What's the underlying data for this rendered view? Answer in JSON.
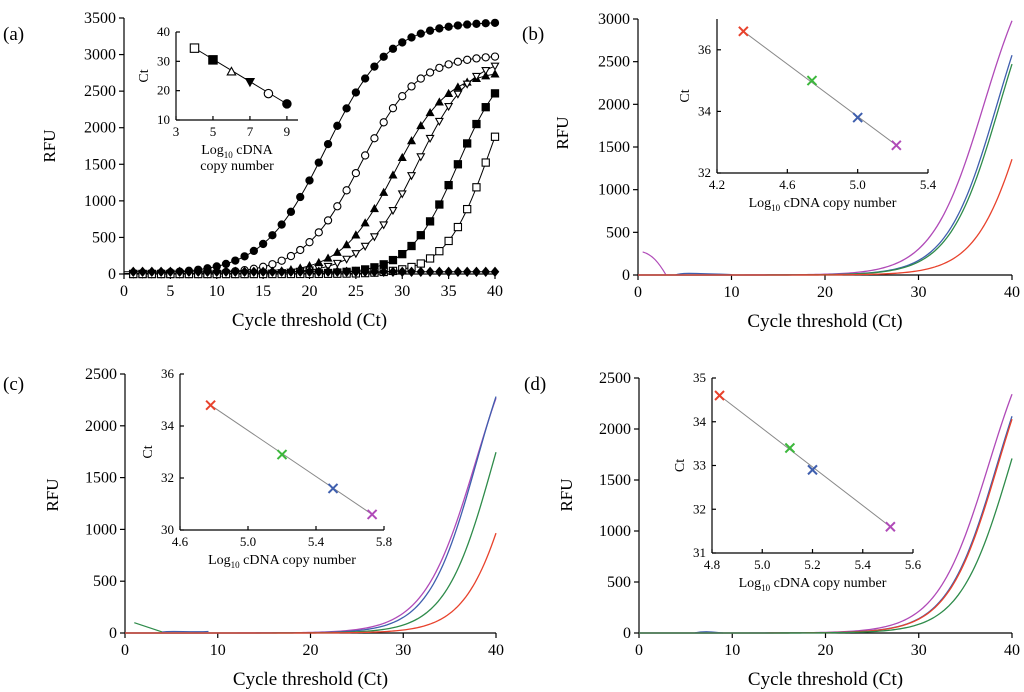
{
  "chart_data": [
    {
      "type": "line",
      "panel_label": "(a)",
      "xlabel": "Cycle threshold (Ct)",
      "ylabel": "RFU",
      "xlim": [
        0,
        40
      ],
      "ylim": [
        0,
        3500
      ],
      "xticks": [
        "0",
        "5",
        "10",
        "15",
        "20",
        "25",
        "30",
        "35",
        "40"
      ],
      "yticks": [
        "0",
        "500",
        "1000",
        "1500",
        "2000",
        "2500",
        "3000",
        "3500"
      ],
      "curve_type": "sigmoid_markers",
      "series": [
        {
          "name": "filled circle",
          "marker": "filled-circle",
          "plateau": 3450,
          "midpoint": 21.8,
          "slope": 3.4
        },
        {
          "name": "open circle",
          "marker": "open-circle",
          "plateau": 3000,
          "midpoint": 25.5,
          "slope": 3.1
        },
        {
          "name": "filled triangle",
          "marker": "filled-triangle",
          "plateau": 2800,
          "midpoint": 29.2,
          "slope": 2.9
        },
        {
          "name": "open down triangle",
          "marker": "open-tri-down",
          "plateau": 3000,
          "midpoint": 31.6,
          "slope": 2.9
        },
        {
          "name": "filled square",
          "marker": "filled-square",
          "plateau": 3000,
          "midpoint": 36.0,
          "slope": 2.6
        },
        {
          "name": "open square",
          "marker": "open-square",
          "plateau": 3400,
          "midpoint": 39.5,
          "slope": 2.4
        },
        {
          "name": "filled diamond",
          "marker": "filled-diamond",
          "flat": 30
        }
      ],
      "inset": {
        "xlabel": "Log10 cDNA copy number",
        "xlabel_main": "Log",
        "xlabel_sub": "10",
        "xlabel_rest": " cDNA",
        "xlabel_line2": "copy number",
        "ylabel": "Ct",
        "xlim": [
          3,
          9.6
        ],
        "ylim": [
          10,
          40
        ],
        "xticks": [
          "3",
          "5",
          "7",
          "9"
        ],
        "yticks": [
          "10",
          "20",
          "30",
          "40"
        ],
        "points": [
          {
            "x": 4,
            "y": 34.5,
            "marker": "open-square"
          },
          {
            "x": 5,
            "y": 30.5,
            "marker": "filled-square"
          },
          {
            "x": 6,
            "y": 26.5,
            "marker": "open-triangle"
          },
          {
            "x": 7,
            "y": 23,
            "marker": "filled-tri-down"
          },
          {
            "x": 8,
            "y": 19,
            "marker": "open-circle"
          },
          {
            "x": 9,
            "y": 15.5,
            "marker": "filled-circle"
          }
        ]
      }
    },
    {
      "type": "line",
      "panel_label": "(b)",
      "xlabel": "Cycle threshold (Ct)",
      "ylabel": "RFU",
      "xlim": [
        0,
        40
      ],
      "ylim": [
        0,
        3000
      ],
      "xticks": [
        "0",
        "10",
        "20",
        "30",
        "40"
      ],
      "yticks": [
        "0",
        "500",
        "1000",
        "1500",
        "2000",
        "2500",
        "3000"
      ],
      "curve_type": "colored",
      "series": [
        {
          "name": "magenta",
          "color": "#b04ab8",
          "plateau": 4000,
          "midpoint": 37.0,
          "slope": 2.8
        },
        {
          "name": "blue",
          "color": "#3f5fae",
          "plateau": 4000,
          "midpoint": 38.4,
          "slope": 2.7
        },
        {
          "name": "green",
          "color": "#2e8b4a",
          "plateau": 4000,
          "midpoint": 38.7,
          "slope": 2.7
        },
        {
          "name": "red",
          "color": "#e8422c",
          "plateau": 4000,
          "midpoint": 41.8,
          "slope": 2.7
        }
      ],
      "inset": {
        "xlabel": "Log10 cDNA copy number",
        "xlabel_main": "Log",
        "xlabel_sub": "10",
        "xlabel_rest": " cDNA copy number",
        "ylabel": "Ct",
        "xlim": [
          4.2,
          5.4
        ],
        "ylim": [
          32,
          37
        ],
        "xticks": [
          "4.2",
          "4.6",
          "5.0",
          "5.4"
        ],
        "yticks": [
          "32",
          "34",
          "36"
        ],
        "points": [
          {
            "x": 4.35,
            "y": 36.6,
            "color": "#e8422c"
          },
          {
            "x": 4.74,
            "y": 35.0,
            "color": "#3cb83c"
          },
          {
            "x": 5.0,
            "y": 33.8,
            "color": "#3f5fae"
          },
          {
            "x": 5.22,
            "y": 32.9,
            "color": "#b04ab8"
          }
        ]
      }
    },
    {
      "type": "line",
      "panel_label": "(c)",
      "xlabel": "Cycle threshold (Ct)",
      "ylabel": "RFU",
      "xlim": [
        0,
        40
      ],
      "ylim": [
        0,
        2500
      ],
      "xticks": [
        "0",
        "10",
        "20",
        "30",
        "40"
      ],
      "yticks": [
        "0",
        "500",
        "1000",
        "1500",
        "2000",
        "2500"
      ],
      "curve_type": "colored",
      "series": [
        {
          "name": "magenta",
          "color": "#b04ab8",
          "plateau": 3300,
          "midpoint": 37.8,
          "slope": 2.8
        },
        {
          "name": "blue",
          "color": "#3f5fae",
          "plateau": 3300,
          "midpoint": 37.9,
          "slope": 2.6
        },
        {
          "name": "green",
          "color": "#2e8b4a",
          "plateau": 3300,
          "midpoint": 39.7,
          "slope": 2.6
        },
        {
          "name": "red",
          "color": "#e8422c",
          "plateau": 3300,
          "midpoint": 42.3,
          "slope": 2.6
        }
      ],
      "inset": {
        "xlabel": "Log10 cDNA copy number",
        "xlabel_main": "Log",
        "xlabel_sub": "10",
        "xlabel_rest": " cDNA copy number",
        "ylabel": "Ct",
        "xlim": [
          4.6,
          5.8
        ],
        "ylim": [
          30,
          36
        ],
        "xticks": [
          "4.6",
          "5.0",
          "5.4",
          "5.8"
        ],
        "yticks": [
          "30",
          "32",
          "34",
          "36"
        ],
        "points": [
          {
            "x": 4.78,
            "y": 34.8,
            "color": "#e8422c"
          },
          {
            "x": 5.2,
            "y": 32.9,
            "color": "#3cb83c"
          },
          {
            "x": 5.5,
            "y": 31.6,
            "color": "#3f5fae"
          },
          {
            "x": 5.73,
            "y": 30.6,
            "color": "#b04ab8"
          }
        ]
      }
    },
    {
      "type": "line",
      "panel_label": "(d)",
      "xlabel": "Cycle threshold (Ct)",
      "ylabel": "RFU",
      "xlim": [
        0,
        40
      ],
      "ylim": [
        0,
        2500
      ],
      "xticks": [
        "0",
        "10",
        "20",
        "30",
        "40"
      ],
      "yticks": [
        "0",
        "500",
        "1000",
        "1500",
        "2000",
        "2500"
      ],
      "curve_type": "colored",
      "series": [
        {
          "name": "magenta",
          "color": "#b04ab8",
          "plateau": 3300,
          "midpoint": 37.5,
          "slope": 2.8
        },
        {
          "name": "blue",
          "color": "#3f5fae",
          "plateau": 3300,
          "midpoint": 38.4,
          "slope": 2.7
        },
        {
          "name": "red",
          "color": "#e8422c",
          "plateau": 3300,
          "midpoint": 38.5,
          "slope": 2.7
        },
        {
          "name": "green",
          "color": "#2e8b4a",
          "plateau": 3300,
          "midpoint": 39.8,
          "slope": 2.7
        }
      ],
      "inset": {
        "xlabel": "Log10 cDNA copy number",
        "xlabel_main": "Log",
        "xlabel_sub": "10",
        "xlabel_rest": " cDNA copy number",
        "ylabel": "Ct",
        "xlim": [
          4.8,
          5.6
        ],
        "ylim": [
          31,
          35
        ],
        "xticks": [
          "4.8",
          "5.0",
          "5.2",
          "5.4",
          "5.6"
        ],
        "yticks": [
          "31",
          "32",
          "33",
          "34",
          "35"
        ],
        "points": [
          {
            "x": 4.83,
            "y": 34.6,
            "color": "#e8422c"
          },
          {
            "x": 5.11,
            "y": 33.4,
            "color": "#3cb83c"
          },
          {
            "x": 5.2,
            "y": 32.9,
            "color": "#3f5fae"
          },
          {
            "x": 5.51,
            "y": 31.6,
            "color": "#b04ab8"
          }
        ]
      }
    }
  ]
}
